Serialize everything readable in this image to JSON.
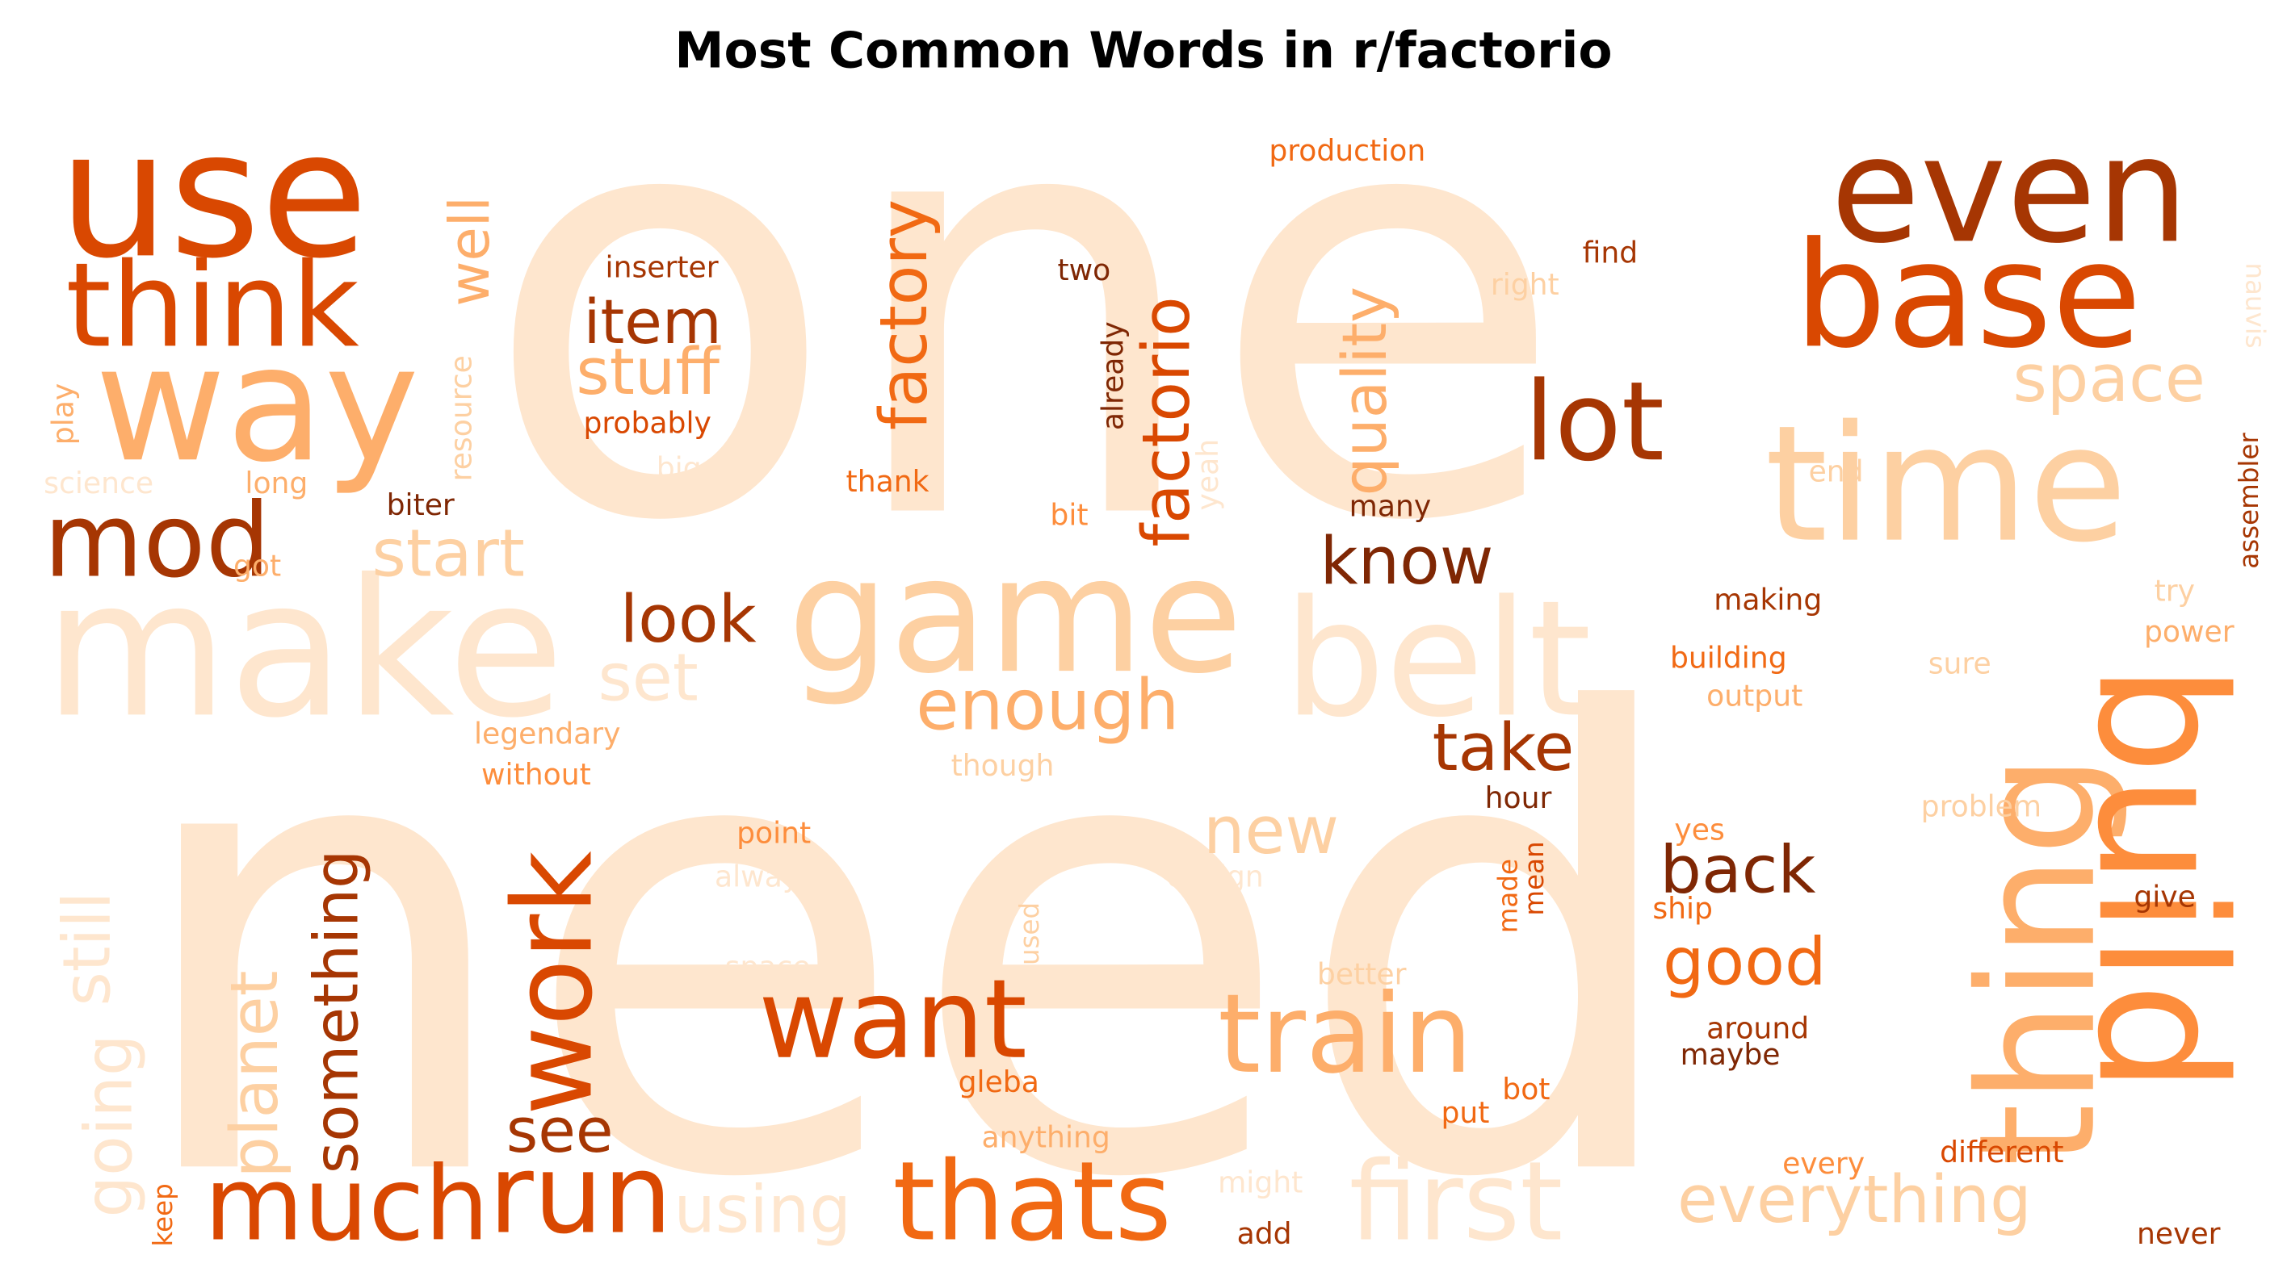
{
  "chart_data": {
    "type": "wordcloud",
    "title": "Most Common Words in r/factorio",
    "words": [
      {
        "text": "one",
        "color": "#fee6ce"
      },
      {
        "text": "need",
        "color": "#fee6ce"
      },
      {
        "text": "make",
        "color": "#fee6ce"
      },
      {
        "text": "use",
        "color": "#d94801"
      },
      {
        "text": "way",
        "color": "#fdae6b"
      },
      {
        "text": "think",
        "color": "#d94801"
      },
      {
        "text": "mod",
        "color": "#a63603"
      },
      {
        "text": "even",
        "color": "#a63603"
      },
      {
        "text": "base",
        "color": "#d94801"
      },
      {
        "text": "time",
        "color": "#fdd0a2"
      },
      {
        "text": "game",
        "color": "#fdd0a2"
      },
      {
        "text": "belt",
        "color": "#fee6ce"
      },
      {
        "text": "thing",
        "color": "#fdae6b"
      },
      {
        "text": "build",
        "color": "#fd8d3c"
      },
      {
        "text": "lot",
        "color": "#a63603"
      },
      {
        "text": "space",
        "color": "#fdd0a2"
      },
      {
        "text": "well",
        "color": "#fdae6b"
      },
      {
        "text": "item",
        "color": "#a63603"
      },
      {
        "text": "stuff",
        "color": "#fdae6b"
      },
      {
        "text": "inserter",
        "color": "#a63603"
      },
      {
        "text": "probably",
        "color": "#d94801"
      },
      {
        "text": "factory",
        "color": "#f16913"
      },
      {
        "text": "factorio",
        "color": "#d94801"
      },
      {
        "text": "two",
        "color": "#7f2704"
      },
      {
        "text": "already",
        "color": "#7f2704"
      },
      {
        "text": "quality",
        "color": "#fdae6b"
      },
      {
        "text": "production",
        "color": "#f16913"
      },
      {
        "text": "find",
        "color": "#a63603"
      },
      {
        "text": "right",
        "color": "#fdd0a2"
      },
      {
        "text": "nauvis",
        "color": "#fee6ce"
      },
      {
        "text": "assembler",
        "color": "#a63603"
      },
      {
        "text": "end",
        "color": "#fdd0a2"
      },
      {
        "text": "play",
        "color": "#fdae6b"
      },
      {
        "text": "science",
        "color": "#fee6ce"
      },
      {
        "text": "resource",
        "color": "#fdd0a2"
      },
      {
        "text": "long",
        "color": "#fdae6b"
      },
      {
        "text": "biter",
        "color": "#7f2704"
      },
      {
        "text": "got",
        "color": "#fdae6b"
      },
      {
        "text": "start",
        "color": "#fdd0a2"
      },
      {
        "text": "big",
        "color": "#fee6ce"
      },
      {
        "text": "thank",
        "color": "#f16913"
      },
      {
        "text": "bit",
        "color": "#fd8d3c"
      },
      {
        "text": "yeah",
        "color": "#fee6ce"
      },
      {
        "text": "many",
        "color": "#7f2704"
      },
      {
        "text": "know",
        "color": "#7f2704"
      },
      {
        "text": "look",
        "color": "#a63603"
      },
      {
        "text": "set",
        "color": "#fee6ce"
      },
      {
        "text": "enough",
        "color": "#fdae6b"
      },
      {
        "text": "making",
        "color": "#a63603"
      },
      {
        "text": "building",
        "color": "#f16913"
      },
      {
        "text": "output",
        "color": "#fdae6b"
      },
      {
        "text": "try",
        "color": "#fdd0a2"
      },
      {
        "text": "power",
        "color": "#fdae6b"
      },
      {
        "text": "sure",
        "color": "#fdd0a2"
      },
      {
        "text": "legendary",
        "color": "#fdae6b"
      },
      {
        "text": "without",
        "color": "#fd8d3c"
      },
      {
        "text": "though",
        "color": "#fdd0a2"
      },
      {
        "text": "take",
        "color": "#a63603"
      },
      {
        "text": "hour",
        "color": "#7f2704"
      },
      {
        "text": "problem",
        "color": "#fdd0a2"
      },
      {
        "text": "still",
        "color": "#fee6ce"
      },
      {
        "text": "something",
        "color": "#a63603"
      },
      {
        "text": "work",
        "color": "#d94801"
      },
      {
        "text": "point",
        "color": "#fd8d3c"
      },
      {
        "text": "always",
        "color": "#fee6ce"
      },
      {
        "text": "new",
        "color": "#fdd0a2"
      },
      {
        "text": "design",
        "color": "#fee6ce"
      },
      {
        "text": "back",
        "color": "#7f2704"
      },
      {
        "text": "yes",
        "color": "#fd8d3c"
      },
      {
        "text": "ship",
        "color": "#f16913"
      },
      {
        "text": "made",
        "color": "#f16913"
      },
      {
        "text": "mean",
        "color": "#d94801"
      },
      {
        "text": "give",
        "color": "#a63603"
      },
      {
        "text": "planet",
        "color": "#fdd0a2"
      },
      {
        "text": "going",
        "color": "#fee6ce"
      },
      {
        "text": "space age",
        "color": "#fee6ce"
      },
      {
        "text": "used",
        "color": "#fdd0a2"
      },
      {
        "text": "want",
        "color": "#d94801"
      },
      {
        "text": "good",
        "color": "#f16913"
      },
      {
        "text": "train",
        "color": "#fdae6b"
      },
      {
        "text": "better",
        "color": "#fdd0a2"
      },
      {
        "text": "around",
        "color": "#a63603"
      },
      {
        "text": "maybe",
        "color": "#7f2704"
      },
      {
        "text": "gleba",
        "color": "#f16913"
      },
      {
        "text": "bot",
        "color": "#f16913"
      },
      {
        "text": "see",
        "color": "#a63603"
      },
      {
        "text": "put",
        "color": "#f16913"
      },
      {
        "text": "anything",
        "color": "#fdae6b"
      },
      {
        "text": "might",
        "color": "#fee6ce"
      },
      {
        "text": "different",
        "color": "#d94801"
      },
      {
        "text": "every",
        "color": "#fd8d3c"
      },
      {
        "text": "much",
        "color": "#d94801"
      },
      {
        "text": "run",
        "color": "#d94801"
      },
      {
        "text": "using",
        "color": "#fee6ce"
      },
      {
        "text": "thats",
        "color": "#f16913"
      },
      {
        "text": "first",
        "color": "#fee6ce"
      },
      {
        "text": "everything",
        "color": "#fdd0a2"
      },
      {
        "text": "keep",
        "color": "#f16913"
      },
      {
        "text": "add",
        "color": "#a63603"
      },
      {
        "text": "never",
        "color": "#a63603"
      }
    ]
  }
}
